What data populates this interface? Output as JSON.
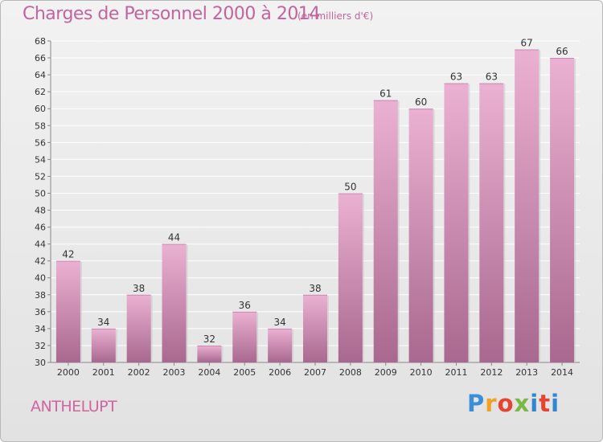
{
  "header": {
    "title": "Charges de Personnel 2000 à 2014",
    "subtitle": "(en milliers d'€)"
  },
  "footer": {
    "commune": "ANTHELUPT",
    "logo_letters": [
      "P",
      "r",
      "o",
      "x",
      "i",
      "t",
      "i"
    ]
  },
  "colors": {
    "bar_light": "#ebb1d2",
    "bar_dark": "#a9688f",
    "title": "#c2659c",
    "grid": "#ffffff"
  },
  "chart_data": {
    "type": "bar",
    "title": "Charges de Personnel 2000 à 2014",
    "subtitle": "(en milliers d'€)",
    "xlabel": "",
    "ylabel": "",
    "categories": [
      "2000",
      "2001",
      "2002",
      "2003",
      "2004",
      "2005",
      "2006",
      "2007",
      "2008",
      "2009",
      "2010",
      "2011",
      "2012",
      "2013",
      "2014"
    ],
    "values": [
      42,
      34,
      38,
      44,
      32,
      36,
      34,
      38,
      50,
      61,
      60,
      63,
      63,
      67,
      66
    ],
    "ylim": [
      30,
      68
    ],
    "ytick_step": 2,
    "grid": true,
    "legend": "none",
    "data_labels": true
  }
}
